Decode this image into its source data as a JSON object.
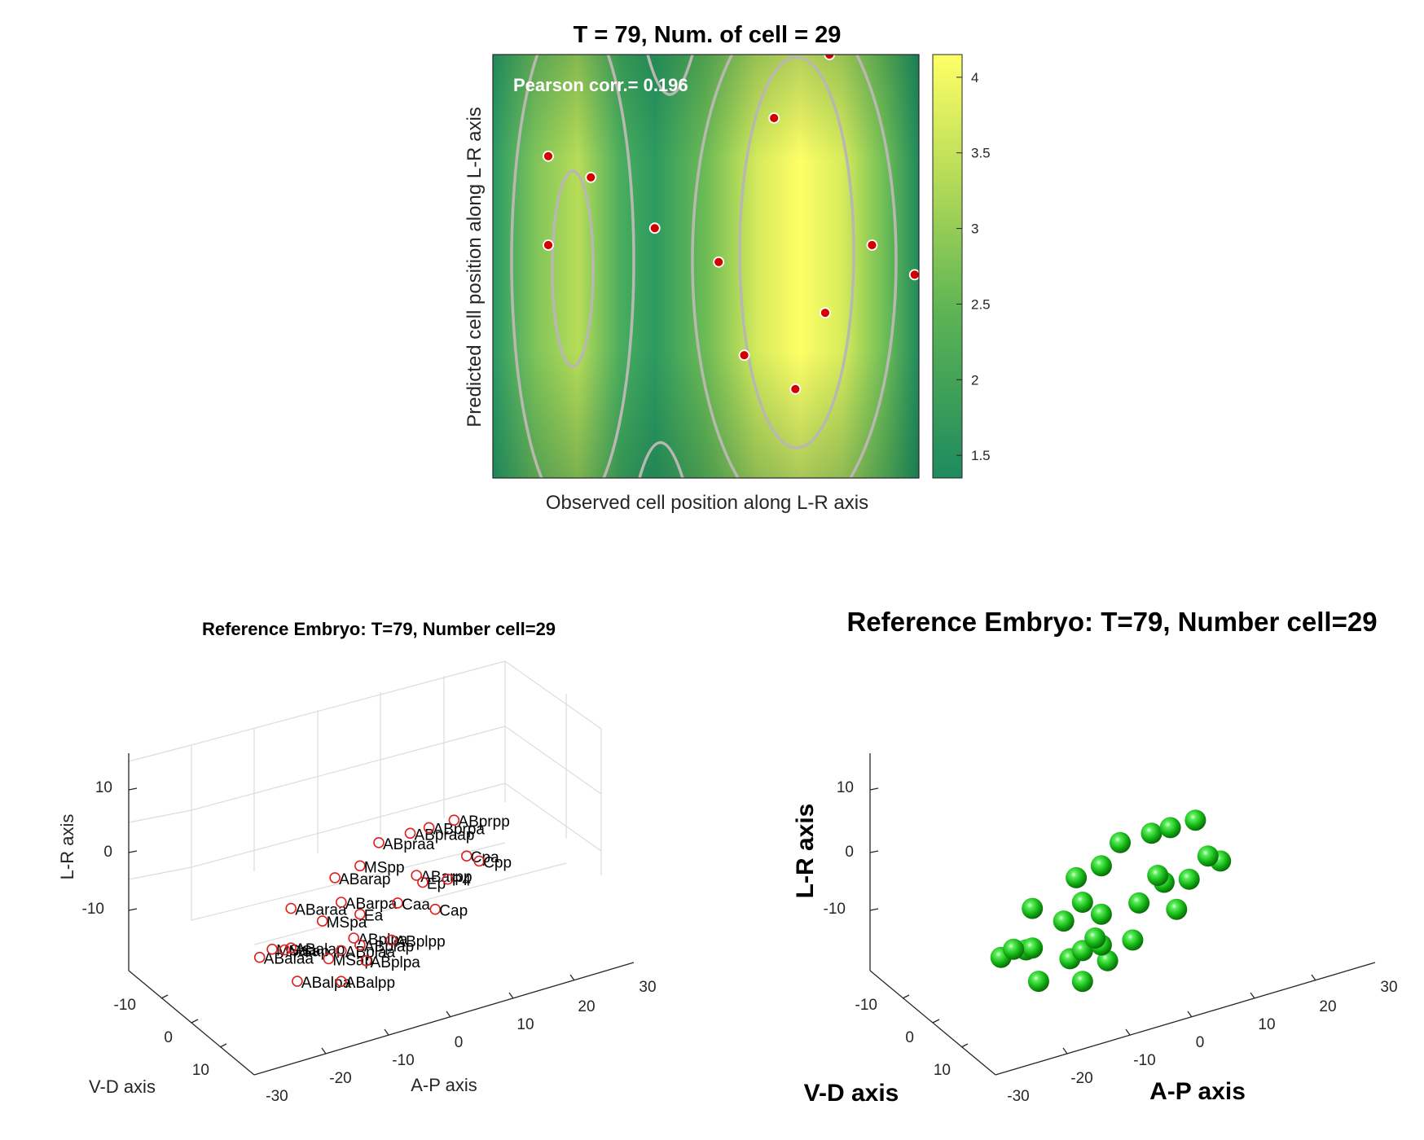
{
  "chart_data": [
    {
      "type": "heatmap",
      "title": "T = 79, Num. of cell = 29",
      "annotation": "Pearson corr.= 0.196",
      "xlabel": "Observed cell position along L-R axis",
      "ylabel": "Predicted cell position along L-R axis",
      "colorbar": {
        "ticks": [
          "4",
          "3.5",
          "3",
          "2.5",
          "2",
          "1.5"
        ],
        "tick_values": [
          4,
          3.5,
          3,
          2.5,
          2,
          1.5
        ],
        "range": [
          1.35,
          4.15
        ]
      },
      "contours": "on",
      "colors": {
        "low": "#1e8c5c",
        "mid": "#7ec24a",
        "high": "#ffff66",
        "contour": "#b8b8b0",
        "point": "#d40000"
      },
      "points": [
        {
          "x": 0.13,
          "y": 0.76
        },
        {
          "x": 0.23,
          "y": 0.71
        },
        {
          "x": 0.13,
          "y": 0.55
        },
        {
          "x": 0.38,
          "y": 0.59
        },
        {
          "x": 0.53,
          "y": 0.51
        },
        {
          "x": 0.66,
          "y": 0.85
        },
        {
          "x": 0.79,
          "y": 1.0
        },
        {
          "x": 0.89,
          "y": 0.55
        },
        {
          "x": 0.99,
          "y": 0.48
        },
        {
          "x": 0.78,
          "y": 0.39
        },
        {
          "x": 0.59,
          "y": 0.29
        },
        {
          "x": 0.71,
          "y": 0.21
        }
      ]
    },
    {
      "type": "scatter",
      "title": "Reference Embryo: T=79, Number cell=29",
      "xlabel": "A-P axis",
      "ylabel": "V-D axis",
      "zlabel": "L-R axis",
      "xticks": [
        "-30",
        "-20",
        "-10",
        "0",
        "10",
        "20",
        "30"
      ],
      "yticks": [
        "-10",
        "0",
        "10"
      ],
      "zticks": [
        "10",
        "0",
        "-10"
      ],
      "marker": "open-circle",
      "marker_color": "#e02020",
      "grid": "on",
      "cells": [
        {
          "label": "ABpraa",
          "x": 0,
          "y": 0,
          "z": 13
        },
        {
          "label": "ABpraap",
          "x": 5,
          "y": 0,
          "z": 13
        },
        {
          "label": "ABprpa",
          "x": 8,
          "y": 0,
          "z": 13
        },
        {
          "label": "ABprpp",
          "x": 12,
          "y": 0,
          "z": 13
        },
        {
          "label": "ABarap",
          "x": -7,
          "y": 0,
          "z": 8
        },
        {
          "label": "MSpp",
          "x": -3,
          "y": 0,
          "z": 9
        },
        {
          "label": "ABaraa",
          "x": -14,
          "y": 0,
          "z": 4
        },
        {
          "label": "ABarpa",
          "x": -6,
          "y": 0,
          "z": 2
        },
        {
          "label": "ABarpp",
          "x": 6,
          "y": 0,
          "z": 3
        },
        {
          "label": "Ep",
          "x": 7,
          "y": 0,
          "z": 1
        },
        {
          "label": "Cpa",
          "x": 14,
          "y": 0,
          "z": 4
        },
        {
          "label": "Cpp",
          "x": 16,
          "y": 0,
          "z": 2
        },
        {
          "label": "P4",
          "x": 11,
          "y": 0,
          "z": 0
        },
        {
          "label": "MSpa",
          "x": -9,
          "y": 0,
          "z": -1
        },
        {
          "label": "Ea",
          "x": -3,
          "y": 0,
          "z": -2
        },
        {
          "label": "Caa",
          "x": 3,
          "y": 0,
          "z": -2
        },
        {
          "label": "Cap",
          "x": 9,
          "y": 0,
          "z": -6
        },
        {
          "label": "ABalaa",
          "x": -19,
          "y": 0,
          "z": -5
        },
        {
          "label": "MSaa",
          "x": -17,
          "y": 0,
          "z": -4
        },
        {
          "label": "MSap",
          "x": -15,
          "y": 0,
          "z": -5
        },
        {
          "label": "ABalap",
          "x": -14,
          "y": 0,
          "z": -5
        },
        {
          "label": "ABplpa",
          "x": -4,
          "y": 0,
          "z": -7
        },
        {
          "label": "ABplaa",
          "x": -6,
          "y": 0,
          "z": -9
        },
        {
          "label": "ABplap",
          "x": -3,
          "y": 0,
          "z": -9
        },
        {
          "label": "ABplpp",
          "x": 2,
          "y": 0,
          "z": -10
        },
        {
          "label": "MSap",
          "x": -8,
          "y": 0,
          "z": -10
        },
        {
          "label": "ABalpa",
          "x": -13,
          "y": 0,
          "z": -13
        },
        {
          "label": "ABplpa",
          "x": -2,
          "y": 0,
          "z": -13
        },
        {
          "label": "ABalpp",
          "x": -6,
          "y": 0,
          "z": -16
        }
      ]
    },
    {
      "type": "scatter",
      "title": "Reference Embryo: T=79, Number cell=29",
      "xlabel": "A-P axis",
      "ylabel": "V-D axis",
      "zlabel": "L-R axis",
      "xticks": [
        "-30",
        "-20",
        "-10",
        "0",
        "10",
        "20",
        "30"
      ],
      "yticks": [
        "-10",
        "0",
        "10"
      ],
      "zticks": [
        "10",
        "0",
        "-10"
      ],
      "marker": "sphere",
      "marker_color": "#22cc22",
      "grid": "off"
    }
  ]
}
